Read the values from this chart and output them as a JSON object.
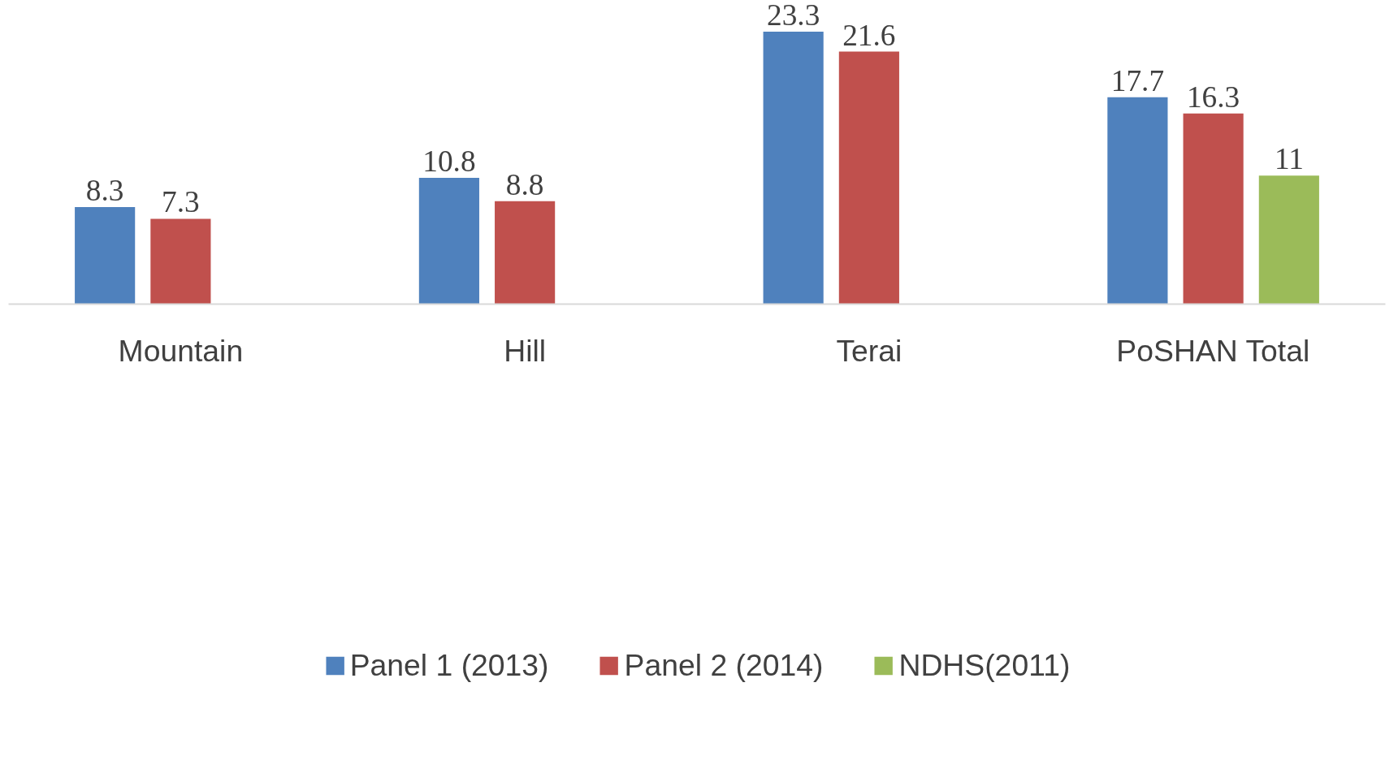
{
  "chart_data": {
    "type": "bar",
    "categories": [
      "Mountain",
      "Hill",
      "Terai",
      "PoSHAN Total"
    ],
    "series": [
      {
        "name": "Panel 1 (2013)",
        "color": "#4f81bd",
        "values": [
          8.3,
          10.8,
          23.3,
          17.7
        ]
      },
      {
        "name": "Panel 2 (2014)",
        "color": "#c0504d",
        "values": [
          7.3,
          8.8,
          21.6,
          16.3
        ]
      },
      {
        "name": "NDHS(2011)",
        "color": "#9bbb59",
        "values": [
          null,
          null,
          null,
          11
        ]
      }
    ],
    "data_labels": true,
    "legend": "bottom"
  }
}
